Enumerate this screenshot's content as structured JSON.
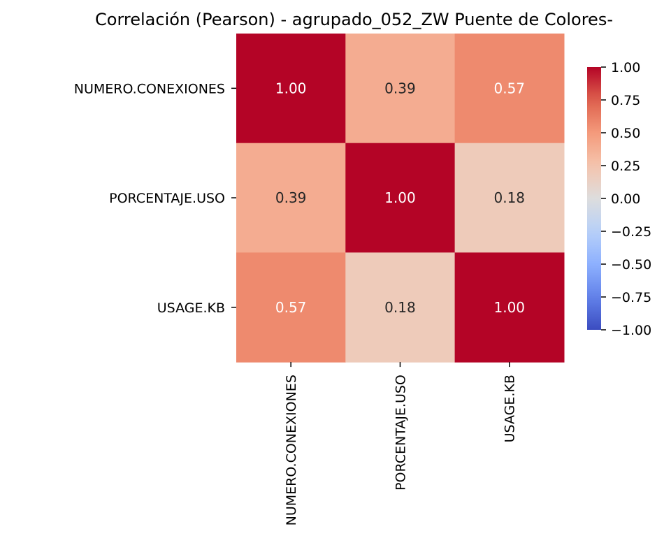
{
  "chart_data": {
    "type": "heatmap",
    "title": "Correlación (Pearson) - agrupado_052_ZW Puente de Colores-",
    "rows": [
      "NUMERO.CONEXIONES",
      "PORCENTAJE.USO",
      "USAGE.KB"
    ],
    "columns": [
      "NUMERO.CONEXIONES",
      "PORCENTAJE.USO",
      "USAGE.KB"
    ],
    "values": [
      [
        1.0,
        0.39,
        0.57
      ],
      [
        0.39,
        1.0,
        0.18
      ],
      [
        0.57,
        0.18,
        1.0
      ]
    ],
    "value_labels": [
      [
        "1.00",
        "0.39",
        "0.57"
      ],
      [
        "0.39",
        "1.00",
        "0.18"
      ],
      [
        "0.57",
        "0.18",
        "1.00"
      ]
    ],
    "colormap": "coolwarm",
    "vmin": -1.0,
    "vmax": 1.0,
    "colorbar_ticks": [
      1.0,
      0.75,
      0.5,
      0.25,
      0.0,
      -0.25,
      -0.5,
      -0.75,
      -1.0
    ],
    "colorbar_tick_labels": [
      "1.00",
      "0.75",
      "0.50",
      "0.25",
      "0.00",
      "−0.25",
      "−0.50",
      "−0.75",
      "−1.00"
    ],
    "legend": "colorbar right",
    "grid": false,
    "colors": {
      "hot": "#b40426",
      "cold": "#3b4cc0",
      "neutral": "#dddddd"
    }
  }
}
